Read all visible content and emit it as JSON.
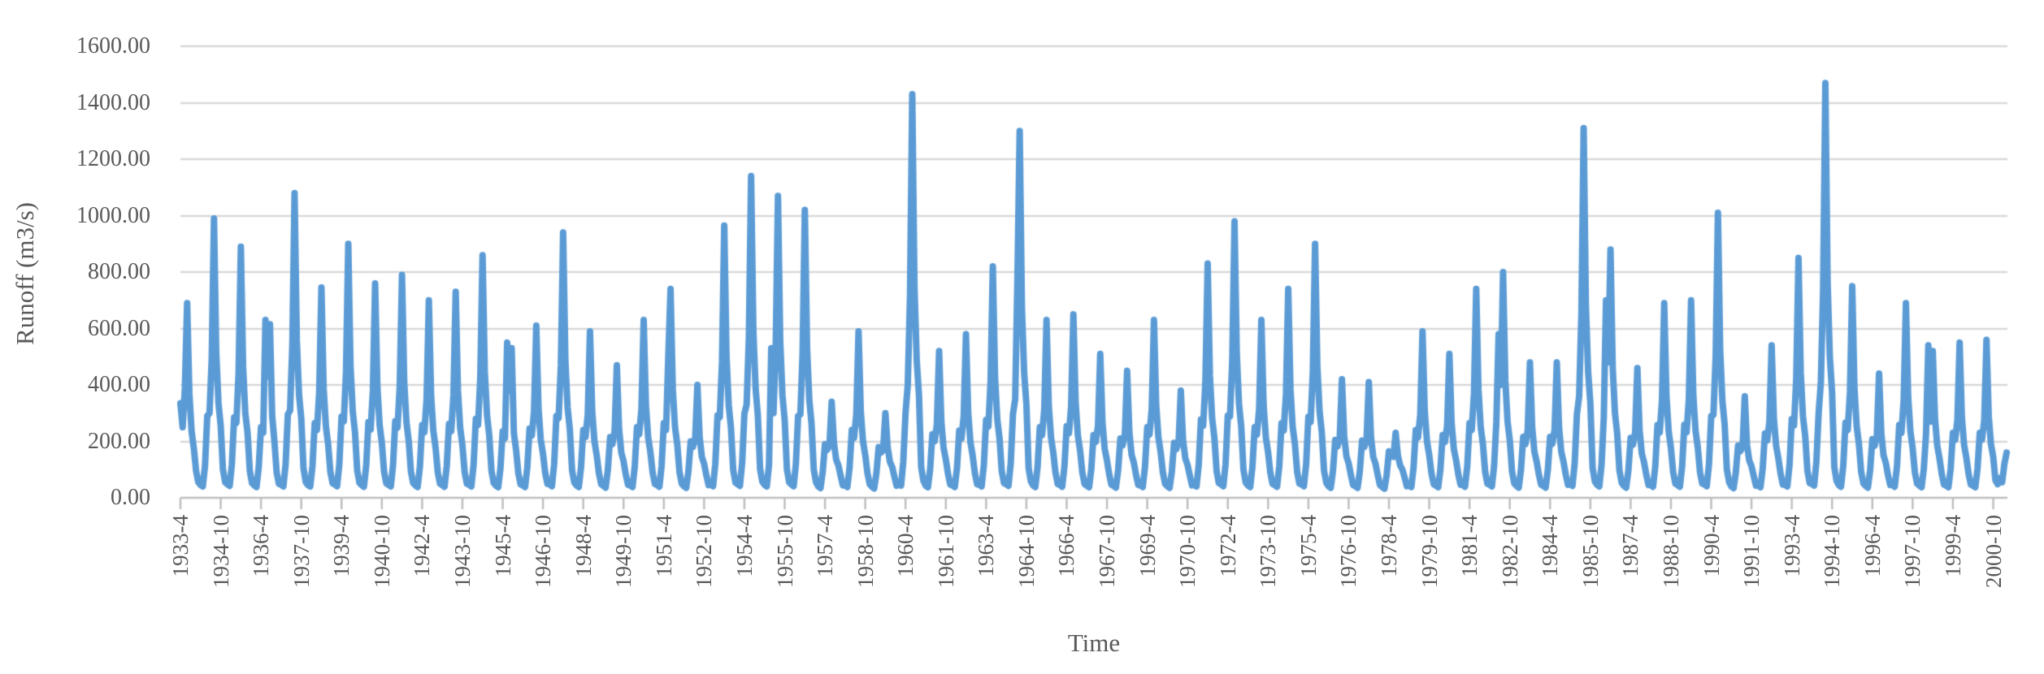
{
  "styles": {
    "background": "#FFFFFF",
    "line_color": "#5B9BD5",
    "grid_color": "#D9D9D9",
    "axis_color": "#BFBFBF",
    "text_color": "#595959"
  },
  "chart_data": {
    "type": "line",
    "title": "",
    "xlabel": "Time",
    "ylabel": "Runoff (m3/s)",
    "ylim": [
      0,
      1600
    ],
    "ytick_step": 200,
    "grid": true,
    "legend": "none",
    "ytick_labels": [
      "1600.00",
      "1400.00",
      "1200.00",
      "1000.00",
      "800.00",
      "600.00",
      "400.00",
      "200.00",
      "0.00"
    ],
    "xtick_interval_months": 18,
    "xtick_labels": [
      "1933-4",
      "1934-10",
      "1936-4",
      "1937-10",
      "1939-4",
      "1940-10",
      "1942-4",
      "1943-10",
      "1945-4",
      "1946-10",
      "1948-4",
      "1949-10",
      "1951-4",
      "1952-10",
      "1954-4",
      "1955-10",
      "1957-4",
      "1958-10",
      "1960-4",
      "1961-10",
      "1963-4",
      "1964-10",
      "1966-4",
      "1967-10",
      "1969-4",
      "1970-10",
      "1972-4",
      "1973-10",
      "1975-4",
      "1976-10",
      "1978-4",
      "1979-10",
      "1981-4",
      "1982-10",
      "1984-4",
      "1985-10",
      "1987-4",
      "1988-10",
      "1990-4",
      "1991-10",
      "1993-4",
      "1994-10",
      "1996-4",
      "1997-10",
      "1999-4",
      "2000-10"
    ],
    "start": {
      "year": 1933,
      "month": 4
    },
    "end": {
      "year": 2001,
      "month": 4
    },
    "line_color": "#5B9BD5",
    "monthly_values_by_year": {
      "1933": [
        335,
        250,
        390,
        690,
        370,
        235,
        175,
        95,
        55
      ],
      "1934": [
        45,
        40,
        115,
        290,
        300,
        495,
        990,
        515,
        335,
        255,
        100,
        55
      ],
      "1935": [
        48,
        42,
        120,
        285,
        265,
        445,
        890,
        465,
        300,
        230,
        95,
        52
      ],
      "1936": [
        44,
        38,
        110,
        250,
        230,
        630,
        430,
        615,
        290,
        200,
        90,
        50
      ],
      "1937": [
        46,
        40,
        118,
        295,
        310,
        540,
        1080,
        560,
        365,
        280,
        105,
        56
      ],
      "1938": [
        45,
        40,
        112,
        265,
        240,
        372,
        745,
        388,
        253,
        190,
        92,
        51
      ],
      "1939": [
        47,
        41,
        119,
        288,
        270,
        450,
        900,
        468,
        306,
        232,
        96,
        53
      ],
      "1940": [
        45,
        39,
        113,
        268,
        242,
        380,
        760,
        395,
        258,
        195,
        92,
        51
      ],
      "1941": [
        46,
        40,
        115,
        272,
        248,
        395,
        790,
        410,
        268,
        202,
        93,
        52
      ],
      "1942": [
        44,
        38,
        110,
        258,
        232,
        350,
        700,
        364,
        238,
        178,
        90,
        50
      ],
      "1943": [
        45,
        39,
        112,
        262,
        236,
        365,
        730,
        380,
        248,
        186,
        91,
        50
      ],
      "1944": [
        46,
        40,
        117,
        280,
        258,
        430,
        860,
        447,
        292,
        221,
        95,
        52
      ],
      "1945": [
        43,
        37,
        105,
        235,
        210,
        550,
        380,
        530,
        230,
        168,
        86,
        48
      ],
      "1946": [
        44,
        38,
        108,
        245,
        220,
        305,
        610,
        317,
        207,
        156,
        88,
        49
      ],
      "1947": [
        47,
        41,
        120,
        290,
        282,
        470,
        940,
        489,
        320,
        242,
        98,
        54
      ],
      "1948": [
        44,
        38,
        107,
        240,
        215,
        295,
        590,
        307,
        200,
        151,
        87,
        48
      ],
      "1949": [
        42,
        36,
        100,
        215,
        190,
        235,
        470,
        244,
        160,
        130,
        82,
        46
      ],
      "1950": [
        44,
        38,
        110,
        250,
        225,
        315,
        630,
        328,
        214,
        161,
        89,
        49
      ],
      "1951": [
        45,
        39,
        112,
        265,
        240,
        500,
        740,
        385,
        250,
        189,
        91,
        50
      ],
      "1952": [
        41,
        35,
        95,
        200,
        180,
        210,
        400,
        215,
        145,
        120,
        80,
        45
      ],
      "1953": [
        47,
        41,
        120,
        292,
        285,
        483,
        965,
        502,
        328,
        248,
        99,
        54
      ],
      "1954": [
        48,
        42,
        124,
        298,
        330,
        570,
        1140,
        593,
        388,
        293,
        103,
        57
      ],
      "1955": [
        46,
        40,
        118,
        530,
        300,
        535,
        1070,
        556,
        364,
        275,
        101,
        55
      ],
      "1956": [
        47,
        41,
        119,
        290,
        295,
        510,
        1020,
        530,
        347,
        262,
        100,
        55
      ],
      "1957": [
        40,
        34,
        92,
        190,
        170,
        185,
        340,
        195,
        135,
        115,
        78,
        44
      ],
      "1958": [
        44,
        38,
        107,
        240,
        212,
        295,
        590,
        307,
        200,
        151,
        87,
        48
      ],
      "1959": [
        39,
        33,
        88,
        180,
        160,
        170,
        300,
        180,
        128,
        110,
        76,
        43
      ],
      "1960": [
        49,
        43,
        128,
        300,
        400,
        715,
        1430,
        744,
        486,
        365,
        108,
        60
      ],
      "1961": [
        43,
        37,
        102,
        225,
        200,
        260,
        520,
        270,
        177,
        136,
        84,
        47
      ],
      "1962": [
        44,
        38,
        106,
        238,
        210,
        290,
        580,
        302,
        197,
        149,
        86,
        48
      ],
      "1963": [
        46,
        40,
        116,
        276,
        252,
        410,
        820,
        426,
        278,
        210,
        94,
        52
      ],
      "1964": [
        48,
        42,
        122,
        296,
        350,
        780,
        1300,
        676,
        442,
        333,
        105,
        58
      ],
      "1965": [
        44,
        38,
        110,
        250,
        222,
        315,
        630,
        328,
        214,
        161,
        89,
        49
      ],
      "1966": [
        45,
        39,
        111,
        254,
        228,
        325,
        650,
        338,
        221,
        167,
        89,
        49
      ],
      "1967": [
        43,
        37,
        101,
        222,
        198,
        255,
        510,
        265,
        173,
        133,
        83,
        46
      ],
      "1968": [
        42,
        36,
        98,
        210,
        186,
        225,
        450,
        234,
        153,
        125,
        81,
        45
      ],
      "1969": [
        44,
        38,
        110,
        250,
        224,
        315,
        630,
        328,
        214,
        161,
        89,
        49
      ],
      "1970": [
        41,
        35,
        93,
        195,
        172,
        195,
        380,
        205,
        140,
        117,
        79,
        44
      ],
      "1971": [
        46,
        40,
        116,
        278,
        255,
        415,
        830,
        432,
        282,
        213,
        94,
        52
      ],
      "1972": [
        47,
        41,
        120,
        291,
        288,
        490,
        980,
        510,
        333,
        252,
        99,
        54
      ],
      "1973": [
        44,
        38,
        110,
        250,
        223,
        315,
        630,
        328,
        214,
        161,
        89,
        49
      ],
      "1974": [
        45,
        39,
        112,
        264,
        238,
        370,
        740,
        385,
        250,
        189,
        91,
        50
      ],
      "1975": [
        47,
        41,
        119,
        287,
        268,
        450,
        900,
        468,
        306,
        232,
        96,
        53
      ],
      "1976": [
        41,
        35,
        96,
        205,
        182,
        210,
        420,
        218,
        147,
        122,
        80,
        45
      ],
      "1977": [
        41,
        35,
        95,
        203,
        180,
        205,
        410,
        213,
        144,
        121,
        80,
        45
      ],
      "1978": [
        38,
        32,
        82,
        165,
        150,
        145,
        230,
        150,
        115,
        100,
        72,
        41
      ],
      "1979": [
        44,
        38,
        107,
        240,
        213,
        295,
        590,
        307,
        200,
        151,
        87,
        48
      ],
      "1980": [
        43,
        37,
        101,
        222,
        197,
        255,
        510,
        265,
        173,
        133,
        83,
        46
      ],
      "1981": [
        45,
        39,
        113,
        265,
        240,
        370,
        740,
        385,
        250,
        189,
        91,
        50
      ],
      "1982": [
        46,
        40,
        114,
        270,
        580,
        400,
        800,
        416,
        270,
        204,
        93,
        51
      ],
      "1983": [
        42,
        36,
        99,
        216,
        190,
        240,
        480,
        250,
        163,
        128,
        82,
        46
      ],
      "1984": [
        42,
        36,
        99,
        216,
        191,
        240,
        480,
        250,
        163,
        128,
        82,
        46
      ],
      "1985": [
        48,
        42,
        123,
        297,
        360,
        655,
        1310,
        681,
        445,
        335,
        106,
        58
      ],
      "1986": [
        46,
        40,
        118,
        284,
        700,
        480,
        880,
        458,
        299,
        227,
        96,
        53
      ],
      "1987": [
        42,
        36,
        98,
        212,
        188,
        230,
        460,
        239,
        156,
        126,
        81,
        45
      ],
      "1988": [
        45,
        39,
        111,
        258,
        231,
        345,
        690,
        359,
        235,
        176,
        90,
        50
      ],
      "1989": [
        45,
        39,
        111,
        259,
        232,
        350,
        700,
        364,
        238,
        178,
        90,
        50
      ],
      "1990": [
        47,
        41,
        119,
        290,
        293,
        505,
        1010,
        525,
        343,
        260,
        100,
        55
      ],
      "1991": [
        40,
        34,
        90,
        185,
        165,
        180,
        360,
        187,
        132,
        112,
        77,
        43
      ],
      "1992": [
        43,
        37,
        103,
        228,
        203,
        270,
        540,
        281,
        184,
        140,
        85,
        47
      ],
      "1993": [
        46,
        40,
        117,
        279,
        256,
        425,
        850,
        442,
        289,
        218,
        95,
        52
      ],
      "1994": [
        49,
        43,
        129,
        300,
        410,
        735,
        1470,
        764,
        500,
        375,
        109,
        60
      ],
      "1995": [
        45,
        39,
        113,
        266,
        240,
        375,
        750,
        390,
        253,
        191,
        92,
        51
      ],
      "1996": [
        42,
        36,
        97,
        208,
        184,
        220,
        440,
        229,
        150,
        124,
        80,
        45
      ],
      "1997": [
        45,
        39,
        111,
        258,
        230,
        345,
        690,
        359,
        235,
        176,
        90,
        50
      ],
      "1998": [
        43,
        37,
        103,
        228,
        540,
        270,
        520,
        281,
        184,
        140,
        85,
        47
      ],
      "1999": [
        43,
        37,
        104,
        230,
        205,
        275,
        550,
        286,
        187,
        142,
        85,
        47
      ],
      "2000": [
        43,
        37,
        104,
        230,
        206,
        275,
        560,
        290,
        190,
        145,
        62,
        48
      ],
      "2001": [
        70,
        55,
        120,
        160
      ]
    }
  }
}
